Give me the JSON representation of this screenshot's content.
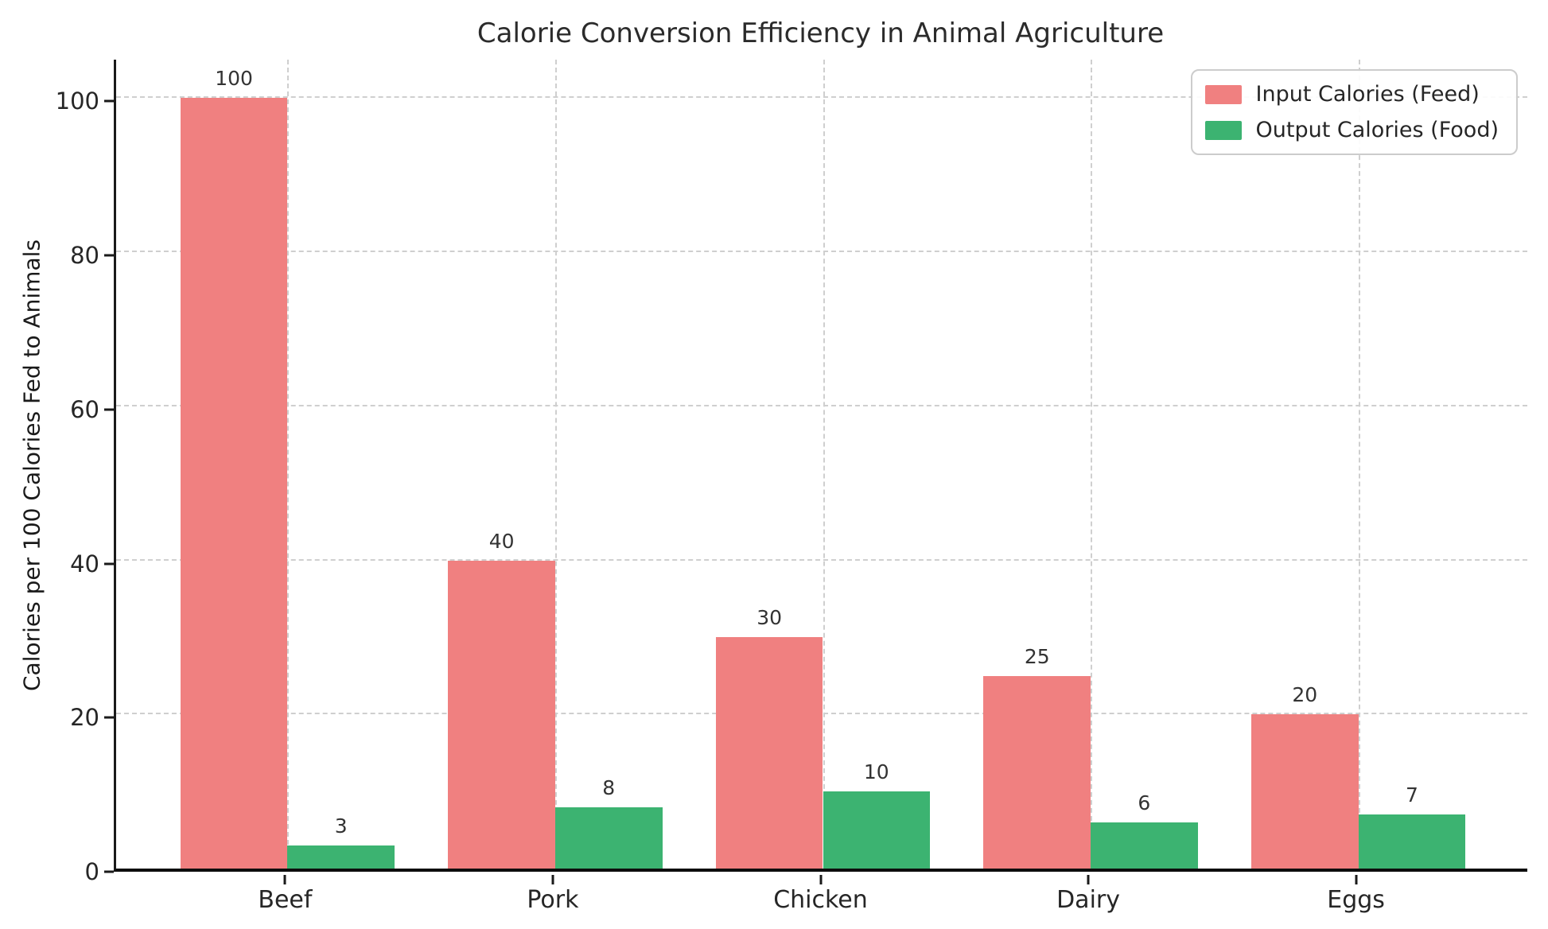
{
  "chart_data": {
    "type": "bar",
    "title": "Calorie Conversion Efficiency in Animal Agriculture",
    "xlabel": "",
    "ylabel": "Calories per 100 Calories Fed to Animals",
    "categories": [
      "Beef",
      "Pork",
      "Chicken",
      "Dairy",
      "Eggs"
    ],
    "series": [
      {
        "name": "Input Calories (Feed)",
        "color": "#F08080",
        "values": [
          100,
          40,
          30,
          25,
          20
        ]
      },
      {
        "name": "Output Calories (Food)",
        "color": "#3CB371",
        "values": [
          3,
          8,
          10,
          6,
          7
        ]
      }
    ],
    "yticks": [
      0,
      20,
      40,
      60,
      80,
      100
    ],
    "ylim": [
      0,
      105.4
    ],
    "grid": true,
    "grid_style": "dashed",
    "legend_position": "top-right",
    "bar_labels": true,
    "colors": {
      "grid": "#cfcfcf",
      "spine": "#1a1a1a",
      "tick_text": "#262626",
      "bar_label_text": "#333333",
      "title_text": "#2b2b2b"
    }
  }
}
